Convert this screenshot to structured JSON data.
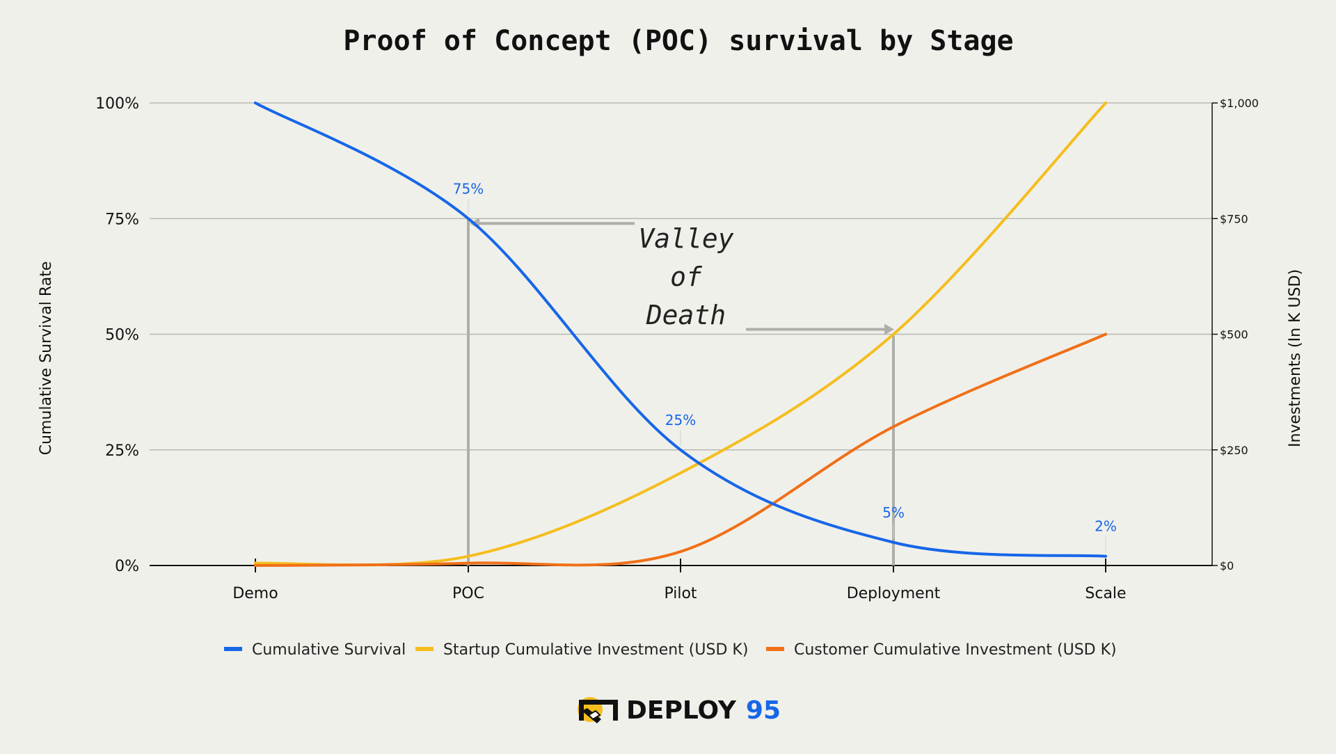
{
  "chart_data": {
    "type": "line",
    "title": "Proof of Concept (POC) survival by Stage",
    "categories": [
      "Demo",
      "POC",
      "Pilot",
      "Deployment",
      "Scale"
    ],
    "ylabel": "Cumulative Survival Rate",
    "y2label": "Investments (In K USD)",
    "ylim": [
      0,
      100
    ],
    "y_ticks": [
      "0%",
      "25%",
      "50%",
      "75%",
      "100%"
    ],
    "y2lim": [
      0,
      1000
    ],
    "y2_ticks": [
      "$0",
      "$250",
      "$500",
      "$750",
      "$1,000"
    ],
    "grid": true,
    "legend_position": "bottom",
    "series": [
      {
        "name": "Cumulative Survival",
        "axis": "left",
        "color": "#1766e8",
        "values": [
          100,
          75,
          25,
          5,
          2
        ],
        "data_labels": [
          "",
          "75%",
          "25%",
          "5%",
          "2%"
        ]
      },
      {
        "name": "Startup Cumulative Investment (USD K)",
        "axis": "right",
        "color": "#f5be1e",
        "values": [
          5,
          20,
          200,
          500,
          1000
        ]
      },
      {
        "name": "Customer Cumulative Investment (USD K)",
        "axis": "right",
        "color": "#f07018",
        "values": [
          0,
          5,
          30,
          300,
          500
        ]
      }
    ],
    "annotations": [
      {
        "text_lines": [
          "Valley",
          "of",
          "Death"
        ],
        "between": [
          "POC",
          "Deployment"
        ]
      }
    ]
  },
  "brand": {
    "name": "DEPLOY",
    "number": "95",
    "logo_icon": "deploy95-logo-icon",
    "number_color": "#1766e8"
  }
}
